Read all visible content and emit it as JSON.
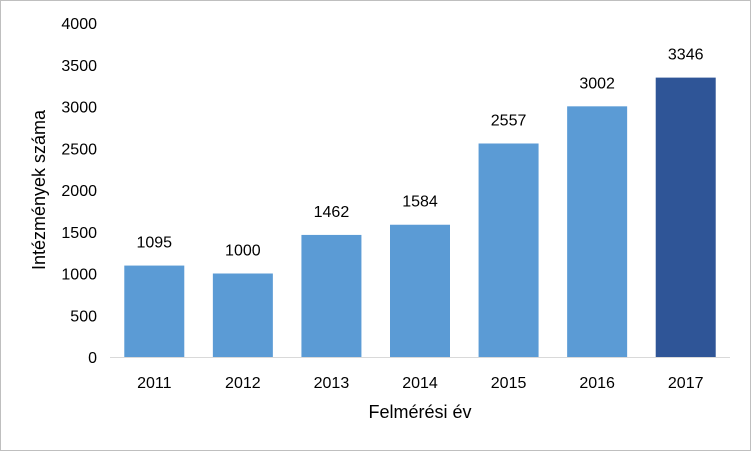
{
  "chart_data": {
    "type": "bar",
    "categories": [
      "2011",
      "2012",
      "2013",
      "2014",
      "2015",
      "2016",
      "2017"
    ],
    "values": [
      1095,
      1000,
      1462,
      1584,
      2557,
      3002,
      3346
    ],
    "data_labels": [
      "1095",
      "1000",
      "1462",
      "1584",
      "2557",
      "3002",
      "3346"
    ],
    "xlabel": "Felmérési év",
    "ylabel": "Intézmények száma",
    "ylim": [
      0,
      4000
    ],
    "yticks": [
      "0",
      "500",
      "1000",
      "1500",
      "2000",
      "2500",
      "3000",
      "3500",
      "4000"
    ],
    "ytick_values": [
      0,
      500,
      1000,
      1500,
      2000,
      2500,
      3000,
      3500,
      4000
    ],
    "grid": false,
    "legend": "none",
    "colors": {
      "bar": "#5b9bd5",
      "highlight_bar": "#2f5597",
      "axis": "#d9d9d9"
    },
    "highlight_index": 6
  }
}
